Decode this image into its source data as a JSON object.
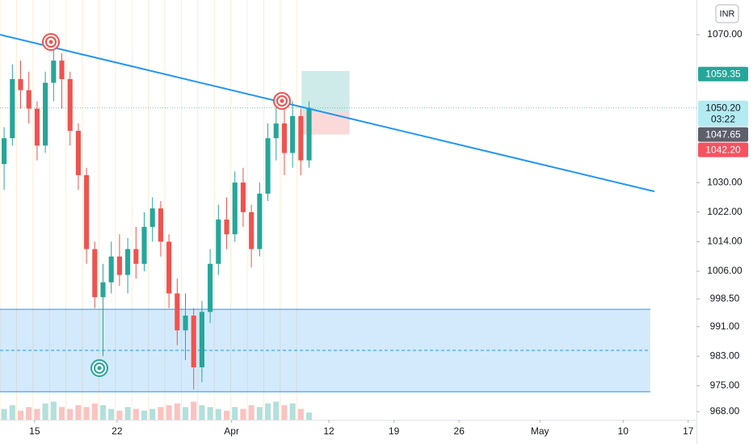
{
  "chart_data": {
    "type": "candlestick",
    "currency": "INR",
    "up_color": "#26a69a",
    "down_color": "#ef5350",
    "open": [
      1035,
      1042,
      1058,
      1055,
      1050,
      1040,
      1057,
      1063,
      1058,
      1044,
      1032,
      1012,
      999,
      1003,
      1010,
      1005,
      1012,
      1008,
      1018,
      1023,
      1014,
      1000,
      990,
      994,
      980,
      995,
      1008,
      1020,
      1016,
      1030,
      1022,
      1012,
      1027,
      1042,
      1046,
      1038,
      1048,
      1036
    ],
    "high": [
      1045,
      1062,
      1063,
      1060,
      1052,
      1060,
      1068,
      1065,
      1060,
      1046,
      1034,
      1014,
      1008,
      1014,
      1016,
      1015,
      1018,
      1022,
      1026,
      1025,
      1016,
      1004,
      1000,
      996,
      998,
      1012,
      1024,
      1026,
      1033,
      1034,
      1024,
      1030,
      1046,
      1052,
      1050,
      1052,
      1050,
      1052
    ],
    "low": [
      1028,
      1040,
      1050,
      1046,
      1036,
      1038,
      1052,
      1050,
      1040,
      1028,
      1008,
      996,
      983,
      1000,
      1002,
      1000,
      1004,
      1006,
      1014,
      1010,
      996,
      986,
      982,
      974,
      976,
      992,
      1005,
      1012,
      1014,
      1018,
      1007,
      1010,
      1025,
      1036,
      1032,
      1034,
      1032,
      1034
    ],
    "close": [
      1042,
      1058,
      1055,
      1050,
      1040,
      1057,
      1063,
      1058,
      1044,
      1032,
      1012,
      999,
      1003,
      1010,
      1005,
      1012,
      1008,
      1018,
      1023,
      1014,
      1000,
      990,
      994,
      980,
      995,
      1008,
      1020,
      1016,
      1030,
      1022,
      1012,
      1027,
      1042,
      1046,
      1038,
      1048,
      1036,
      1050.2
    ],
    "volume": [
      6,
      8,
      5,
      7,
      6,
      9,
      10,
      7,
      6,
      8,
      7,
      9,
      8,
      6,
      5,
      7,
      6,
      5,
      6,
      7,
      8,
      9,
      7,
      10,
      8,
      7,
      6,
      5,
      7,
      6,
      8,
      7,
      9,
      10,
      8,
      9,
      6,
      4
    ],
    "volume_lim": [
      0,
      30
    ],
    "xlim": [
      -0.5,
      84
    ],
    "xticks": [
      {
        "value": 3.7,
        "label": "15"
      },
      {
        "value": 13.7,
        "label": "22"
      },
      {
        "value": 27.6,
        "label": "Apr"
      },
      {
        "value": 39.4,
        "label": "12"
      },
      {
        "value": 47.3,
        "label": "19"
      },
      {
        "value": 55.2,
        "label": "26"
      },
      {
        "value": 65,
        "label": "May"
      },
      {
        "value": 75.1,
        "label": "10"
      },
      {
        "value": 83,
        "label": "17"
      }
    ],
    "ylim": [
      965.8,
      1079.4
    ],
    "yticks": [
      {
        "value": 1070,
        "label": "1070.00"
      },
      {
        "value": 1030,
        "label": "1030.00"
      },
      {
        "value": 1022,
        "label": "1022.00"
      },
      {
        "value": 1014,
        "label": "1014.00"
      },
      {
        "value": 1006,
        "label": "1006.00"
      },
      {
        "value": 998.5,
        "label": "998.50"
      },
      {
        "value": 991,
        "label": "991.00"
      },
      {
        "value": 983,
        "label": "983.00"
      },
      {
        "value": 975,
        "label": "975.00"
      },
      {
        "value": 968,
        "label": "968.00"
      }
    ],
    "trendline": {
      "x": [
        -0.5,
        78.9
      ],
      "values": [
        1070,
        1027.6
      ],
      "color": "#2196f3"
    },
    "zone": {
      "top": 995.7,
      "bottom": 973.4,
      "mid": 984.6,
      "x_end": 78.4,
      "color": "#2196f3"
    },
    "position": {
      "x": [
        36.1,
        41.9
      ],
      "target": 1060.2,
      "entry": 1049,
      "stop": 1043
    },
    "price_labels": [
      {
        "value": 1059.35,
        "label": "1059.35",
        "color": "#26a69a",
        "text_color": "#ffffff"
      },
      {
        "value": 1050.2,
        "label": "1050.20",
        "sublabel": "03:22",
        "color": "#b2ebf2",
        "text_color": "#131722"
      },
      {
        "value": 1047.65,
        "label": "1047.65",
        "color": "#5d606b",
        "text_color": "#ffffff"
      },
      {
        "value": 1042.2,
        "label": "1042.20",
        "color": "#f7525f",
        "text_color": "#ffffff"
      }
    ]
  }
}
